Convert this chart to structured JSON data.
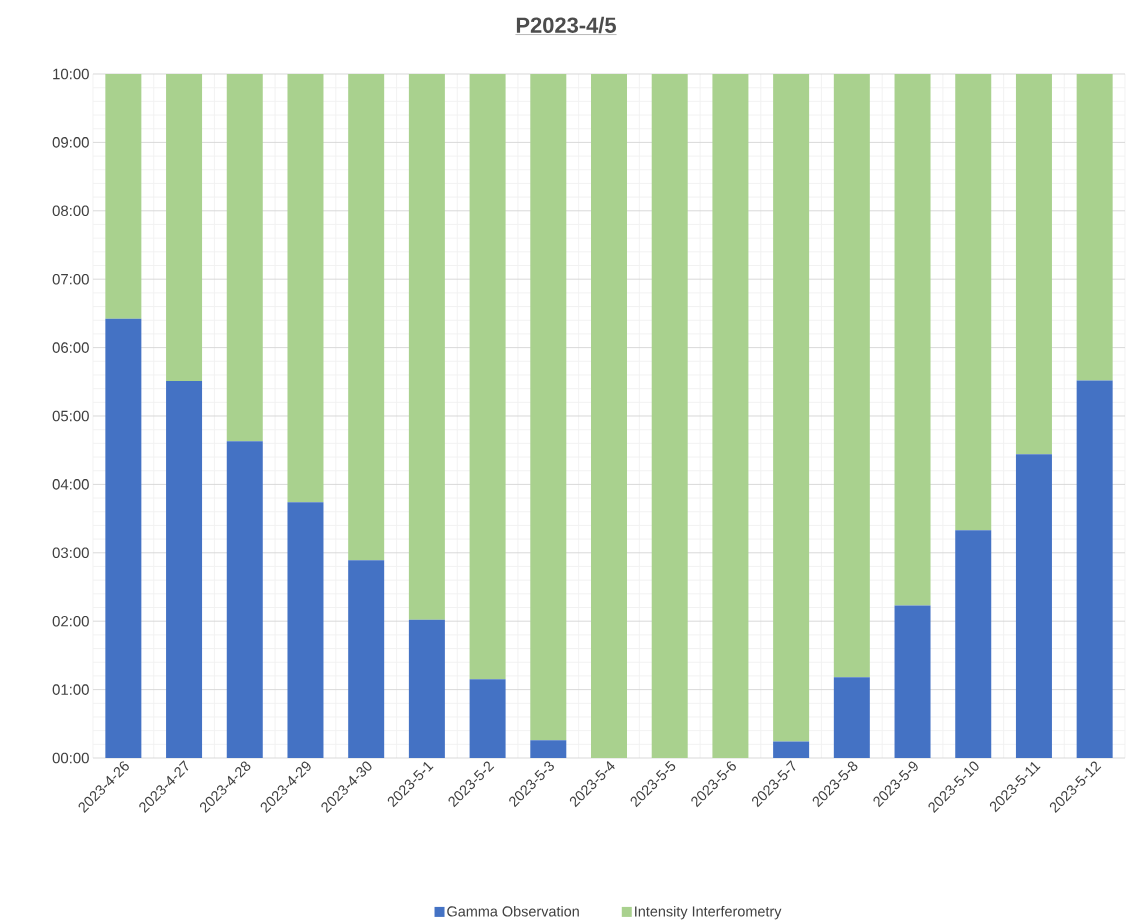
{
  "chart_data": {
    "type": "bar",
    "stacked": true,
    "title": "**P2023-4/5**",
    "categories": [
      "2023-4-26",
      "2023-4-27",
      "2023-4-28",
      "2023-4-29",
      "2023-4-30",
      "2023-5-1",
      "2023-5-2",
      "2023-5-3",
      "2023-5-4",
      "2023-5-5",
      "2023-5-6",
      "2023-5-7",
      "2023-5-8",
      "2023-5-9",
      "2023-5-10",
      "2023-5-11",
      "2023-5-12"
    ],
    "series": [
      {
        "name": "Gamma Observation",
        "color": "#4472c4",
        "values": [
          6.42,
          5.51,
          4.63,
          3.74,
          2.89,
          2.02,
          1.15,
          0.26,
          0,
          0,
          0,
          0.24,
          1.18,
          2.23,
          3.33,
          4.44,
          5.52
        ]
      },
      {
        "name": "Intensity Interferometry",
        "color": "#a9d18e",
        "values": [
          3.58,
          4.49,
          5.37,
          6.26,
          7.11,
          7.98,
          8.85,
          9.74,
          10,
          10,
          10,
          9.76,
          8.82,
          7.77,
          6.67,
          5.56,
          4.48
        ]
      }
    ],
    "ylim": [
      0,
      10
    ],
    "yticks": [
      {
        "value": 0,
        "label": "00:00"
      },
      {
        "value": 1,
        "label": "01:00"
      },
      {
        "value": 2,
        "label": "02:00"
      },
      {
        "value": 3,
        "label": "03:00"
      },
      {
        "value": 4,
        "label": "04:00"
      },
      {
        "value": 5,
        "label": "05:00"
      },
      {
        "value": 6,
        "label": "06:00"
      },
      {
        "value": 7,
        "label": "07:00"
      },
      {
        "value": 8,
        "label": "08:00"
      },
      {
        "value": 9,
        "label": "09:00"
      },
      {
        "value": 10,
        "label": "10:00"
      }
    ],
    "grid": true,
    "legend": "bottom"
  }
}
